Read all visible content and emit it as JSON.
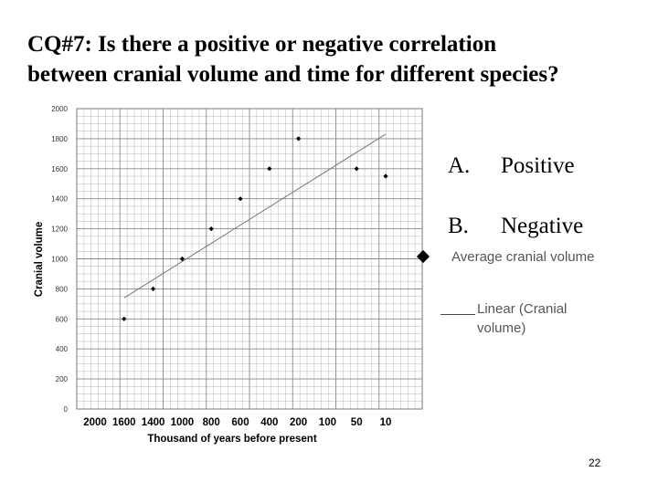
{
  "slide": {
    "title_line1": "CQ#7: Is there a positive or negative correlation",
    "title_line2": "between cranial volume and time for different species?",
    "page_number": "22"
  },
  "answers": [
    {
      "letter": "A.",
      "text": "Positive"
    },
    {
      "letter": "B.",
      "text": "Negative"
    }
  ],
  "legend": {
    "series_label": "Average cranial volume",
    "trend_label": "Linear (Cranial volume)"
  },
  "colors": {
    "grid": "#b4b4b4",
    "marker": "#000000",
    "trendline": "#777777"
  },
  "chart_data": {
    "type": "scatter",
    "title": "",
    "xlabel": "Thousand of years before present",
    "ylabel": "Cranial volume",
    "x_categories": [
      "2000",
      "1600",
      "1400",
      "1000",
      "800",
      "600",
      "400",
      "200",
      "100",
      "50",
      "10"
    ],
    "ylim": [
      0,
      2000
    ],
    "y_ticks": [
      0,
      200,
      400,
      600,
      800,
      1000,
      1200,
      1400,
      1600,
      1800,
      2000
    ],
    "grid": true,
    "series": [
      {
        "name": "Average cranial volume",
        "points": [
          {
            "x": "1600",
            "y": 600
          },
          {
            "x": "1400",
            "y": 800
          },
          {
            "x": "1000",
            "y": 1000
          },
          {
            "x": "800",
            "y": 1200
          },
          {
            "x": "600",
            "y": 1400
          },
          {
            "x": "400",
            "y": 1600
          },
          {
            "x": "200",
            "y": 1800
          },
          {
            "x": "50",
            "y": 1600
          },
          {
            "x": "10",
            "y": 1550
          }
        ]
      }
    ],
    "trendline": {
      "name": "Linear (Cranial volume)",
      "start": {
        "x": "1600",
        "y": 740
      },
      "end": {
        "x": "10",
        "y": 1830
      }
    }
  }
}
